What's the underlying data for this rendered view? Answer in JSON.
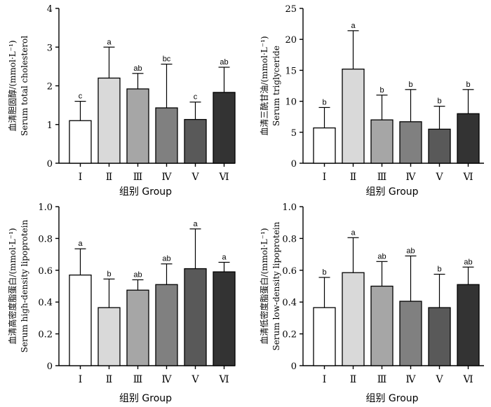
{
  "colors": {
    "axis": "#000000",
    "bar_fills": [
      "#ffffff",
      "#d9d9d9",
      "#a6a6a6",
      "#808080",
      "#595959",
      "#333333"
    ]
  },
  "chart_data": [
    {
      "type": "bar",
      "categories": [
        "Ⅰ",
        "Ⅱ",
        "Ⅲ",
        "Ⅳ",
        "Ⅴ",
        "Ⅵ"
      ],
      "values": [
        1.1,
        2.2,
        1.92,
        1.43,
        1.13,
        1.83
      ],
      "errors": [
        0.5,
        0.8,
        0.4,
        1.13,
        0.45,
        0.65
      ],
      "significance": [
        "c",
        "a",
        "ab",
        "bc",
        "c",
        "ab"
      ],
      "ylim": [
        0,
        4
      ],
      "yticks": [
        0,
        1,
        2,
        3,
        4
      ],
      "xlabel": "组别 Group",
      "ylabel_lines": [
        "血清胆固醇/(mmol·L⁻¹)",
        "Serum total cholesterol"
      ]
    },
    {
      "type": "bar",
      "categories": [
        "Ⅰ",
        "Ⅱ",
        "Ⅲ",
        "Ⅳ",
        "Ⅴ",
        "Ⅵ"
      ],
      "values": [
        5.7,
        15.2,
        7.0,
        6.7,
        5.5,
        8.0
      ],
      "errors": [
        3.3,
        6.2,
        4.0,
        5.2,
        3.7,
        3.9
      ],
      "significance": [
        "b",
        "a",
        "b",
        "b",
        "b",
        "b"
      ],
      "ylim": [
        0,
        25
      ],
      "yticks": [
        0,
        5,
        10,
        15,
        20,
        25
      ],
      "xlabel": "组别 Group",
      "ylabel_lines": [
        "血清三酰甘油/(mmol·L⁻¹)",
        "Serum triglyceride"
      ]
    },
    {
      "type": "bar",
      "categories": [
        "Ⅰ",
        "Ⅱ",
        "Ⅲ",
        "Ⅳ",
        "Ⅴ",
        "Ⅵ"
      ],
      "values": [
        0.57,
        0.365,
        0.475,
        0.51,
        0.61,
        0.59
      ],
      "errors": [
        0.165,
        0.18,
        0.065,
        0.13,
        0.25,
        0.06
      ],
      "significance": [
        "a",
        "b",
        "ab",
        "ab",
        "a",
        "a"
      ],
      "ylim": [
        0,
        1.0
      ],
      "yticks": [
        0,
        0.2,
        0.4,
        0.6,
        0.8,
        1.0
      ],
      "ytick_labels": [
        "0",
        "0.2",
        "0.4",
        "0.6",
        "0.8",
        "1.0"
      ],
      "xlabel": "组别 Group",
      "ylabel_lines": [
        "血清高密度脂蛋白/(mmol·L⁻¹)",
        "Serum high-density lipoprotein"
      ]
    },
    {
      "type": "bar",
      "categories": [
        "Ⅰ",
        "Ⅱ",
        "Ⅲ",
        "Ⅳ",
        "Ⅴ",
        "Ⅵ"
      ],
      "values": [
        0.365,
        0.585,
        0.5,
        0.405,
        0.365,
        0.51
      ],
      "errors": [
        0.19,
        0.22,
        0.155,
        0.285,
        0.21,
        0.11
      ],
      "significance": [
        "b",
        "a",
        "ab",
        "ab",
        "b",
        "ab"
      ],
      "ylim": [
        0,
        1.0
      ],
      "yticks": [
        0,
        0.2,
        0.4,
        0.6,
        0.8,
        1.0
      ],
      "ytick_labels": [
        "0",
        "0.2",
        "0.4",
        "0.6",
        "0.8",
        "1.0"
      ],
      "xlabel": "组别 Group",
      "ylabel_lines": [
        "血清低密度脂蛋白/(mmol·L⁻¹)",
        "Serum low-density lipoprotein"
      ]
    }
  ]
}
